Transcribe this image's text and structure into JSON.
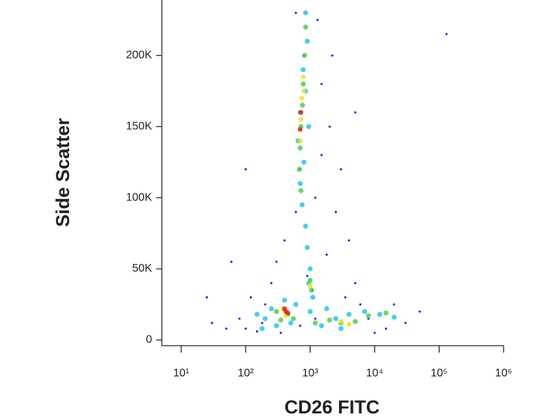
{
  "chart_data": {
    "type": "scatter",
    "xlabel": "CD26 FITC",
    "ylabel": "Side Scatter",
    "xscale": "log",
    "xlim": [
      5,
      1000000
    ],
    "xticks": [
      {
        "value": 10,
        "label": "10¹"
      },
      {
        "value": 100,
        "label": "10²"
      },
      {
        "value": 1000,
        "label": "10³"
      },
      {
        "value": 10000,
        "label": "10⁴"
      },
      {
        "value": 100000,
        "label": "10⁵"
      },
      {
        "value": 1000000,
        "label": "10⁶"
      }
    ],
    "ylim": [
      -4000,
      239000
    ],
    "yticks": [
      0,
      {
        "value": 50000,
        "label": "50K"
      },
      {
        "value": 100000,
        "label": "100K"
      },
      {
        "value": 150000,
        "label": "150K"
      },
      {
        "value": 200000,
        "label": "200K"
      }
    ],
    "grid": false,
    "series": [
      {
        "color": "#1f2fd0",
        "x": [
          30,
          50,
          80,
          120,
          150,
          200,
          250,
          300,
          400,
          600,
          700,
          800,
          1500,
          2000,
          3000,
          2500,
          4000,
          5000,
          6000,
          8000,
          15000,
          30000,
          50000,
          1800,
          1200,
          1500,
          2200,
          1300,
          600,
          900,
          1100,
          3500,
          100,
          180,
          60,
          25,
          20000,
          10000,
          700,
          5000,
          100,
          130000,
          1200,
          350
        ],
        "values": [
          12000,
          8000,
          15000,
          30000,
          6000,
          25000,
          40000,
          55000,
          70000,
          90000,
          120000,
          200000,
          180000,
          150000,
          120000,
          90000,
          70000,
          40000,
          25000,
          15000,
          8000,
          12000,
          20000,
          60000,
          100000,
          130000,
          200000,
          225000,
          230000,
          45000,
          35000,
          30000,
          8000,
          12000,
          55000,
          30000,
          25000,
          5000,
          10000,
          160000,
          120000,
          215000,
          15000,
          5000
        ]
      },
      {
        "color": "#22c8e8",
        "x": [
          850,
          900,
          780,
          850,
          700,
          950,
          650,
          800,
          700,
          750,
          850,
          900,
          1000,
          950,
          1100,
          200,
          250,
          300,
          500,
          600,
          1500,
          2500,
          4000,
          7000,
          12000,
          20000,
          3000,
          150,
          180,
          400,
          1000,
          1800
        ],
        "values": [
          230000,
          210000,
          190000,
          175000,
          160000,
          150000,
          140000,
          125000,
          110000,
          95000,
          80000,
          65000,
          50000,
          40000,
          30000,
          15000,
          22000,
          10000,
          12000,
          25000,
          10000,
          15000,
          18000,
          20000,
          18000,
          16000,
          8000,
          18000,
          8000,
          28000,
          20000,
          22000
        ]
      },
      {
        "color": "#4cd04c",
        "x": [
          850,
          820,
          780,
          760,
          720,
          700,
          680,
          720,
          1000,
          1050,
          350,
          450,
          300,
          550,
          2000,
          3000,
          5000,
          8000,
          15000,
          1200
        ],
        "values": [
          220000,
          200000,
          180000,
          165000,
          150000,
          135000,
          120000,
          105000,
          42000,
          35000,
          14000,
          18000,
          20000,
          15000,
          14000,
          12000,
          13000,
          17000,
          19000,
          12000
        ]
      },
      {
        "color": "#f0e020",
        "x": [
          780,
          740,
          720,
          700,
          800,
          420,
          380,
          3000,
          4000,
          1000
        ],
        "values": [
          185000,
          170000,
          155000,
          140000,
          175000,
          17000,
          22000,
          13000,
          11000,
          38000
        ]
      },
      {
        "color": "#e02010",
        "x": [
          720,
          700,
          420,
          400,
          450
        ],
        "values": [
          160000,
          148000,
          20000,
          22000,
          19000
        ]
      }
    ]
  }
}
